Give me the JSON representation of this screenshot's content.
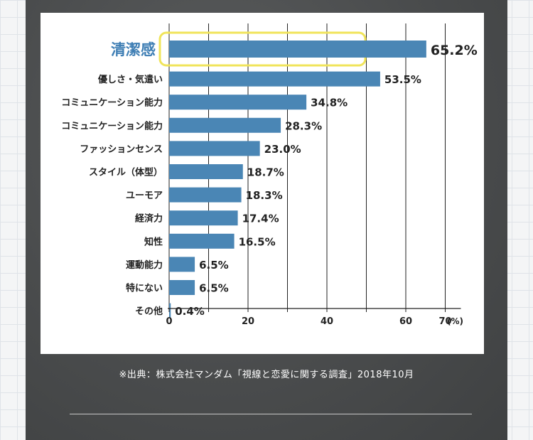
{
  "chart_data": {
    "type": "bar",
    "orientation": "horizontal",
    "categories": [
      "清潔感",
      "優しさ・気遣い",
      "コミュニケーション能力",
      "コミュニケーション能力",
      "ファッションセンス",
      "スタイル（体型）",
      "ユーモア",
      "経済力",
      "知性",
      "運動能力",
      "特にない",
      "その他"
    ],
    "values": [
      65.2,
      53.5,
      34.8,
      28.3,
      23.0,
      18.7,
      18.3,
      17.4,
      16.5,
      6.5,
      6.5,
      0.4
    ],
    "value_labels": [
      "65.2%",
      "53.5%",
      "34.8%",
      "28.3%",
      "23.0%",
      "18.7%",
      "18.3%",
      "17.4%",
      "16.5%",
      "6.5%",
      "6.5%",
      "0.4%"
    ],
    "xticks": [
      "0",
      "20",
      "40",
      "60",
      "70"
    ],
    "xtick_values": [
      0,
      20,
      40,
      60,
      70
    ],
    "xunit": "(%)",
    "xlim": [
      0,
      70
    ],
    "gridlines": [
      0,
      10,
      20,
      30,
      40,
      50,
      60,
      70
    ],
    "highlight_index": 0,
    "bar_color": "#4a86b5",
    "highlight_color": "#f0e45a",
    "highlight_label_color": "#3e7eb4"
  },
  "source_note": "※出典：株式会社マンダム「視線と恋愛に関する調査」2018年10月"
}
